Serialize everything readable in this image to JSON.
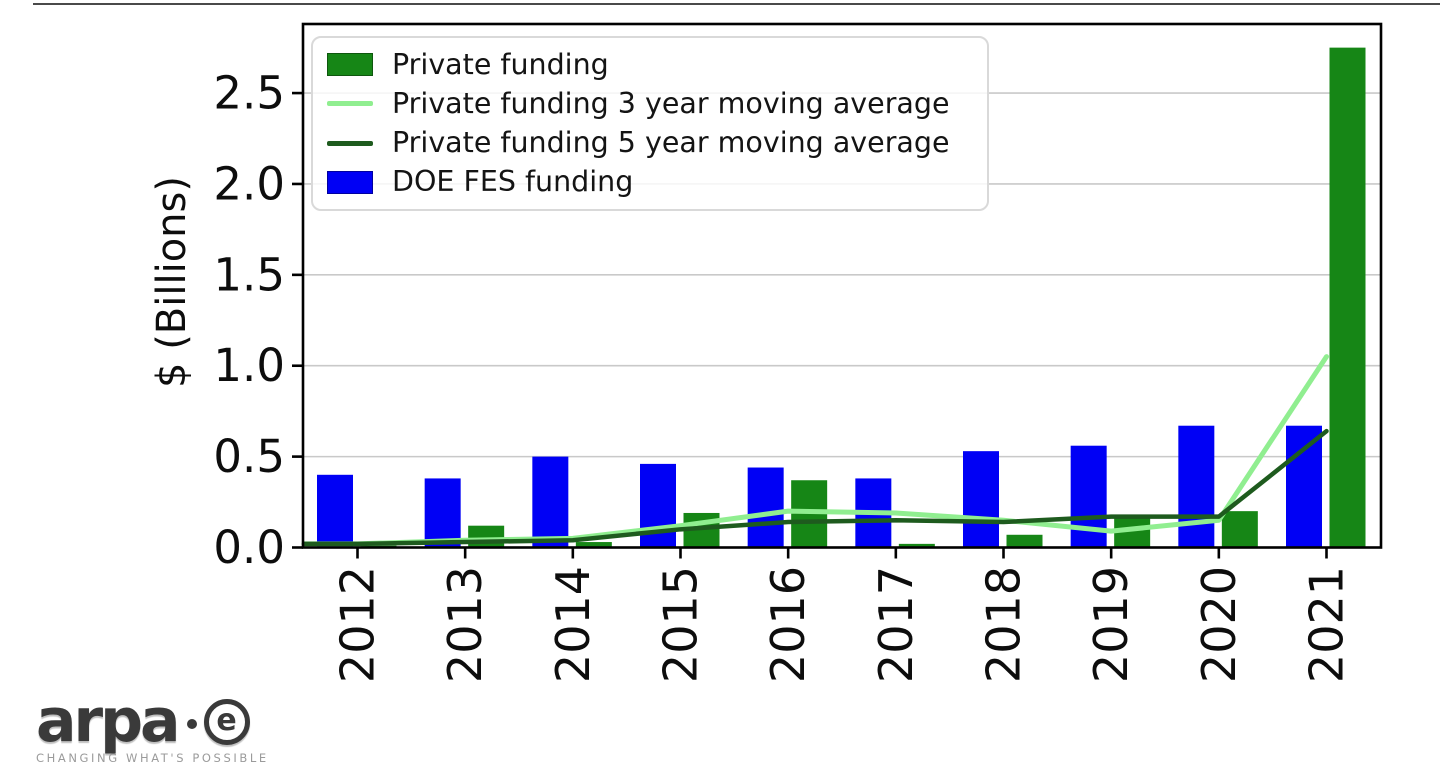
{
  "chart_data": {
    "type": "bar",
    "title": "",
    "categories": [
      "2012",
      "2013",
      "2014",
      "2015",
      "2016",
      "2017",
      "2018",
      "2019",
      "2020",
      "2021"
    ],
    "series": [
      {
        "name": "Private funding",
        "kind": "bar",
        "color": "#168616",
        "values": [
          0.01,
          0.12,
          0.03,
          0.19,
          0.37,
          0.02,
          0.07,
          0.17,
          0.2,
          2.75
        ]
      },
      {
        "name": "Private funding 3 year moving average",
        "kind": "line",
        "color": "#90ee90",
        "values": [
          0.02,
          0.04,
          0.05,
          0.12,
          0.2,
          0.19,
          0.15,
          0.09,
          0.15,
          1.05
        ]
      },
      {
        "name": "Private funding 5 year moving average",
        "kind": "line",
        "color": "#1e5b1e",
        "values": [
          0.02,
          0.03,
          0.04,
          0.1,
          0.14,
          0.15,
          0.14,
          0.17,
          0.17,
          0.64
        ]
      },
      {
        "name": "DOE FES funding",
        "kind": "bar",
        "color": "#0000f5",
        "values": [
          0.4,
          0.38,
          0.5,
          0.46,
          0.44,
          0.38,
          0.53,
          0.56,
          0.67,
          0.67
        ]
      }
    ],
    "xlabel": "",
    "ylabel": "$ (Billions)",
    "ytick_labels": [
      "0.0",
      "0.5",
      "1.0",
      "1.5",
      "2.0",
      "2.5"
    ],
    "ytick_values": [
      0,
      0.5,
      1.0,
      1.5,
      2.0,
      2.5
    ],
    "ylim": [
      0,
      2.88
    ],
    "grid": true,
    "grid_color": "#c9c9c9",
    "axis_color": "#000000",
    "legend_position": "upper left"
  },
  "logo": {
    "word": "arpa",
    "e": "e",
    "tagline": "CHANGING WHAT'S POSSIBLE"
  }
}
